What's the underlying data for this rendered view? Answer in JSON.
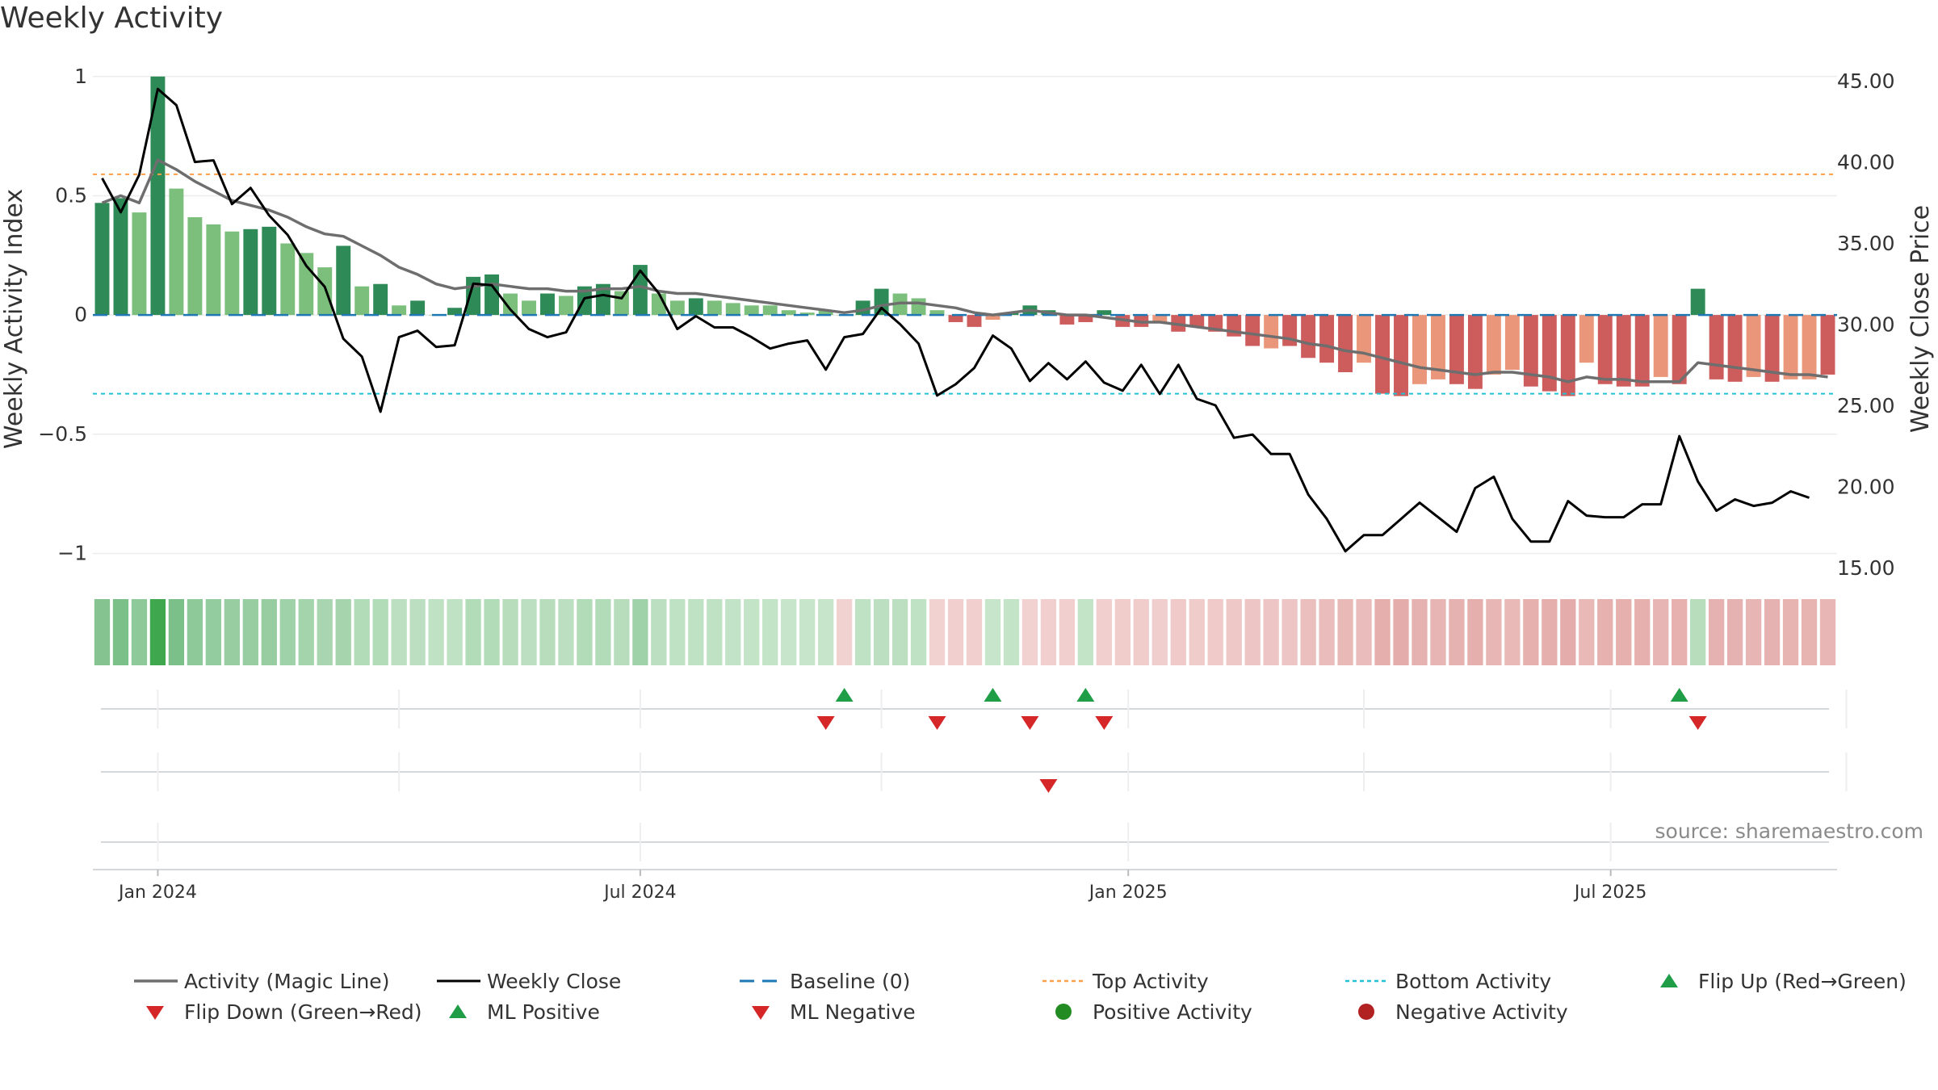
{
  "title": "Weekly Activity",
  "source": "source: sharemaestro.com",
  "chart_data": {
    "type": "bar",
    "title": "Weekly Activity",
    "ylabel": "Weekly Activity Index",
    "y2label": "Weekly Close Price",
    "ylim": [
      -1.1,
      1.05
    ],
    "y2lim": [
      14.4,
      46.0
    ],
    "yticks": [
      {
        "value": 1,
        "label": "1"
      },
      {
        "value": 0.5,
        "label": "0.5"
      },
      {
        "value": 0,
        "label": "0"
      },
      {
        "value": -0.5,
        "label": "−0.5"
      },
      {
        "value": -1,
        "label": "−1"
      }
    ],
    "y2ticks": [
      {
        "value": 45,
        "label": "45.00"
      },
      {
        "value": 40,
        "label": "40.00"
      },
      {
        "value": 35,
        "label": "35.00"
      },
      {
        "value": 30,
        "label": "30.00"
      },
      {
        "value": 25,
        "label": "25.00"
      },
      {
        "value": 20,
        "label": "20.00"
      },
      {
        "value": 15,
        "label": "15.00"
      }
    ],
    "xticks": [
      {
        "index": 3,
        "label": "Jan 2024"
      },
      {
        "index": 29,
        "label": "Jul 2024"
      },
      {
        "index": 55.3,
        "label": "Jan 2025"
      },
      {
        "index": 81.3,
        "label": "Jul 2025"
      }
    ],
    "minor_xticks": [
      16,
      42,
      68,
      94
    ],
    "top_activity": 0.59,
    "bottom_activity": -0.33,
    "grid": true,
    "colors": {
      "pos_strong": "#2e8b57",
      "pos_light": "#7cbf7c",
      "neg_strong": "#cd5c5c",
      "neg_light": "#e9967a",
      "magic_line": "#6e6e6e",
      "close_line": "#000000",
      "baseline": "#1f77b4",
      "top_line": "#ff9f4a",
      "bottom_line": "#22c1d6",
      "flip_up": "#1f9e47",
      "flip_down": "#d62728"
    },
    "activity": [
      0.47,
      0.49,
      0.43,
      1.0,
      0.53,
      0.41,
      0.38,
      0.35,
      0.36,
      0.37,
      0.3,
      0.26,
      0.2,
      0.29,
      0.12,
      0.13,
      0.04,
      0.06,
      0.0,
      0.03,
      0.16,
      0.17,
      0.09,
      0.06,
      0.09,
      0.08,
      0.12,
      0.13,
      0.1,
      0.21,
      0.09,
      0.06,
      0.07,
      0.06,
      0.05,
      0.04,
      0.04,
      0.02,
      0.01,
      0.02,
      0.0,
      0.06,
      0.11,
      0.09,
      0.07,
      0.02,
      -0.03,
      -0.05,
      -0.02,
      0.01,
      0.04,
      0.02,
      -0.04,
      -0.03,
      0.02,
      -0.05,
      -0.05,
      -0.03,
      -0.07,
      -0.05,
      -0.07,
      -0.09,
      -0.13,
      -0.14,
      -0.13,
      -0.18,
      -0.2,
      -0.24,
      -0.2,
      -0.33,
      -0.34,
      -0.29,
      -0.27,
      -0.29,
      -0.31,
      -0.25,
      -0.23,
      -0.3,
      -0.32,
      -0.34,
      -0.2,
      -0.29,
      -0.3,
      -0.3,
      -0.26,
      -0.29,
      0.11,
      -0.27,
      -0.28,
      -0.26,
      -0.28,
      -0.27,
      -0.27,
      -0.25
    ],
    "bar_shade": [
      "d",
      "d",
      "l",
      "d",
      "l",
      "l",
      "l",
      "l",
      "d",
      "d",
      "l",
      "l",
      "l",
      "d",
      "l",
      "d",
      "l",
      "d",
      "l",
      "d",
      "d",
      "d",
      "l",
      "l",
      "d",
      "l",
      "d",
      "d",
      "l",
      "d",
      "l",
      "l",
      "d",
      "l",
      "l",
      "l",
      "l",
      "l",
      "l",
      "l",
      "l",
      "d",
      "d",
      "l",
      "l",
      "l",
      "d",
      "d",
      "l",
      "d",
      "d",
      "d",
      "d",
      "d",
      "d",
      "d",
      "d",
      "l",
      "d",
      "d",
      "d",
      "d",
      "d",
      "l",
      "d",
      "d",
      "d",
      "d",
      "l",
      "d",
      "d",
      "l",
      "l",
      "d",
      "d",
      "l",
      "l",
      "d",
      "d",
      "d",
      "l",
      "d",
      "d",
      "d",
      "l",
      "d",
      "d",
      "d",
      "d",
      "l",
      "d",
      "l",
      "l",
      "d"
    ],
    "magic_line": [
      0.47,
      0.5,
      0.47,
      0.65,
      0.61,
      0.56,
      0.52,
      0.48,
      0.46,
      0.44,
      0.41,
      0.37,
      0.34,
      0.33,
      0.29,
      0.25,
      0.2,
      0.17,
      0.13,
      0.11,
      0.12,
      0.13,
      0.12,
      0.11,
      0.11,
      0.1,
      0.1,
      0.11,
      0.11,
      0.12,
      0.1,
      0.09,
      0.09,
      0.08,
      0.07,
      0.06,
      0.05,
      0.04,
      0.03,
      0.02,
      0.01,
      0.02,
      0.04,
      0.05,
      0.05,
      0.04,
      0.03,
      0.01,
      0.0,
      0.01,
      0.02,
      0.01,
      0.0,
      0.0,
      -0.01,
      -0.02,
      -0.03,
      -0.03,
      -0.04,
      -0.05,
      -0.06,
      -0.07,
      -0.08,
      -0.09,
      -0.1,
      -0.12,
      -0.13,
      -0.15,
      -0.16,
      -0.18,
      -0.2,
      -0.22,
      -0.23,
      -0.24,
      -0.25,
      -0.24,
      -0.24,
      -0.25,
      -0.26,
      -0.28,
      -0.26,
      -0.27,
      -0.27,
      -0.28,
      -0.28,
      -0.28,
      -0.2,
      -0.21,
      -0.22,
      -0.23,
      -0.24,
      -0.25,
      -0.25,
      -0.26
    ],
    "weekly_close": [
      39.0,
      36.9,
      39.2,
      44.5,
      43.5,
      40.0,
      40.1,
      37.4,
      38.4,
      36.7,
      35.5,
      33.6,
      32.3,
      29.1,
      28.0,
      24.6,
      29.2,
      29.6,
      28.6,
      28.7,
      32.5,
      32.4,
      30.9,
      29.7,
      29.2,
      29.5,
      31.6,
      31.8,
      31.6,
      33.3,
      31.9,
      29.7,
      30.5,
      29.8,
      29.8,
      29.2,
      28.5,
      28.8,
      29.0,
      27.2,
      29.2,
      29.4,
      31.0,
      30.0,
      28.8,
      25.6,
      26.3,
      27.3,
      29.3,
      28.5,
      26.5,
      27.6,
      26.6,
      27.7,
      26.4,
      25.9,
      27.5,
      25.7,
      27.5,
      25.4,
      25.0,
      23.0,
      23.2,
      22.0,
      22.0,
      19.5,
      18.0,
      16.0,
      17.0,
      17.0,
      18.0,
      19.0,
      18.1,
      17.2,
      19.9,
      20.6,
      18.0,
      16.6,
      16.6,
      19.1,
      18.2,
      18.1,
      18.1,
      18.9,
      18.9,
      23.1,
      20.3,
      18.5,
      19.2,
      18.8,
      19.0,
      19.7,
      19.3
    ],
    "heat_strength": [
      0.5,
      0.55,
      0.45,
      1.0,
      0.55,
      0.45,
      0.42,
      0.4,
      0.4,
      0.4,
      0.35,
      0.33,
      0.3,
      0.32,
      0.25,
      0.25,
      0.2,
      0.2,
      0.18,
      0.18,
      0.25,
      0.25,
      0.22,
      0.2,
      0.22,
      0.2,
      0.25,
      0.25,
      0.22,
      0.35,
      0.2,
      0.18,
      0.18,
      0.18,
      0.16,
      0.15,
      0.15,
      0.14,
      0.14,
      0.14,
      -0.1,
      0.18,
      0.2,
      0.2,
      0.18,
      -0.1,
      -0.12,
      -0.12,
      0.14,
      0.15,
      -0.1,
      -0.12,
      -0.12,
      0.15,
      -0.12,
      -0.14,
      -0.14,
      -0.13,
      -0.16,
      -0.15,
      -0.16,
      -0.18,
      -0.2,
      -0.2,
      -0.2,
      -0.25,
      -0.27,
      -0.3,
      -0.27,
      -0.38,
      -0.4,
      -0.35,
      -0.33,
      -0.35,
      -0.38,
      -0.32,
      -0.3,
      -0.37,
      -0.38,
      -0.4,
      -0.3,
      -0.36,
      -0.37,
      -0.37,
      -0.33,
      -0.36,
      0.22,
      -0.35,
      -0.35,
      -0.33,
      -0.35,
      -0.34,
      -0.34,
      -0.32
    ],
    "events": {
      "flip_up": [
        40,
        48,
        53,
        85
      ],
      "flip_down": [
        39,
        45,
        50,
        54,
        86
      ],
      "ml_negative": [
        51
      ]
    },
    "legend": [
      {
        "label": "Activity (Magic Line)",
        "symbol": "line-gray"
      },
      {
        "label": "Weekly Close",
        "symbol": "line-black"
      },
      {
        "label": "Baseline (0)",
        "symbol": "dash-blue"
      },
      {
        "label": "Top Activity",
        "symbol": "dot-orange"
      },
      {
        "label": "Bottom Activity",
        "symbol": "dot-cyan"
      },
      {
        "label": "Flip Up (Red→Green)",
        "symbol": "tri-up-green"
      },
      {
        "label": "Flip Down (Green→Red)",
        "symbol": "tri-down-red"
      },
      {
        "label": "ML Positive",
        "symbol": "tri-up-green"
      },
      {
        "label": "ML Negative",
        "symbol": "tri-down-red"
      },
      {
        "label": "Positive Activity",
        "symbol": "circle-green"
      },
      {
        "label": "Negative Activity",
        "symbol": "circle-darkred"
      }
    ]
  }
}
